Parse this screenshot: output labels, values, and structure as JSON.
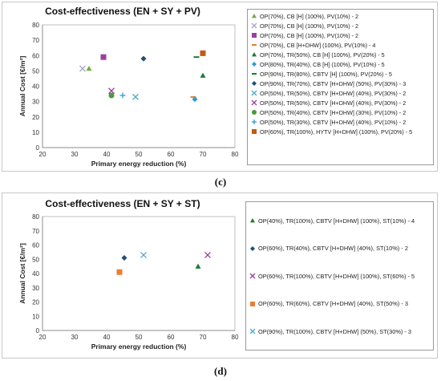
{
  "captions": [
    "(c)",
    "(d)"
  ],
  "chart_data": [
    {
      "type": "scatter",
      "title": "Cost-effectiveness  (EN + SY + PV)",
      "xlabel": "Primary energy reduction (%)",
      "ylabel": "Annual Cost [€/m²]",
      "xlim": [
        20,
        80
      ],
      "ylim": [
        0,
        80
      ],
      "xticks": [
        20,
        30,
        40,
        50,
        60,
        70,
        80
      ],
      "yticks": [
        0,
        10,
        20,
        30,
        40,
        50,
        60,
        70,
        80
      ],
      "grid": false,
      "legend_position": "right",
      "series": [
        {
          "name": "OP(70%), CB [H] (100%), PV(10%) - 2",
          "marker": "triangle",
          "color": "#70ad47",
          "x": [
            34.5
          ],
          "y": [
            51.5
          ]
        },
        {
          "name": "OP(70%), CB [H] (100%), PV(10%) - 2",
          "marker": "x",
          "color": "#a6a6c8",
          "x": [
            32.5
          ],
          "y": [
            51.5
          ]
        },
        {
          "name": "OP(70%), CB [H] (100%), PV(10%) - 2",
          "marker": "square",
          "color": "#9b3fa0",
          "x": [
            39
          ],
          "y": [
            59
          ]
        },
        {
          "name": "OP(70%), CB [H+DHW] (100%), PV(10%) - 4",
          "marker": "dash",
          "color": "#ed7d31",
          "x": [
            67
          ],
          "y": [
            33
          ]
        },
        {
          "name": "OP(70%), TR(50%), CB [H] (100%), PV(20%) - 5",
          "marker": "triangle",
          "color": "#1e7b34",
          "x": [
            70
          ],
          "y": [
            47
          ]
        },
        {
          "name": "OP(80%), TR(40%), CB [H] (100%), PV(10%) - 5",
          "marker": "diamond",
          "color": "#2e9bd6",
          "x": [
            67.5
          ],
          "y": [
            31.5
          ]
        },
        {
          "name": "OP(90%), TR(80%), CBTV [H] (100%), PV(20%) - 5",
          "marker": "dash",
          "color": "#1e7b34",
          "x": [
            68
          ],
          "y": [
            59
          ]
        },
        {
          "name": "OP(90%), TR(70%), CBTV [H+DHW] (50%), PV(30%) - 3",
          "marker": "diamond",
          "color": "#1f4e79",
          "x": [
            51.5
          ],
          "y": [
            58
          ]
        },
        {
          "name": "OP(50%), TR(50%), CBTV [H+DHW] (40%), PV(30%) - 2",
          "marker": "x",
          "color": "#4bacc6",
          "x": [
            49
          ],
          "y": [
            33
          ]
        },
        {
          "name": "OP(50%), TR(50%), CBTV [H+DHW] (40%), PV(30%) - 2",
          "marker": "x",
          "color": "#9b3fa0",
          "x": [
            41.5
          ],
          "y": [
            37
          ]
        },
        {
          "name": "OP(50%), TR(40%), CBTV [H+DHW] (30%), PV(10%) - 2",
          "marker": "circle",
          "color": "#4a9a3a",
          "x": [
            41.5
          ],
          "y": [
            34
          ]
        },
        {
          "name": "OP(50%), TR(30%), CBTV [H+DHW] (40%), PV(10%) - 2",
          "marker": "plus",
          "color": "#2e9bd6",
          "x": [
            45
          ],
          "y": [
            34
          ]
        },
        {
          "name": "OP(60%), TR(100%), HYTV [H+DHW] (100%), PV(20%) - 5",
          "marker": "square",
          "color": "#c55a11",
          "x": [
            70
          ],
          "y": [
            61.5
          ]
        }
      ]
    },
    {
      "type": "scatter",
      "title": "Cost-effectiveness  (EN + SY + ST)",
      "xlabel": "Primary energy reduction (%)",
      "ylabel": "Annual Cost [€/m²]",
      "xlim": [
        20,
        80
      ],
      "ylim": [
        0,
        80
      ],
      "xticks": [
        20,
        30,
        40,
        50,
        60,
        70,
        80
      ],
      "yticks": [
        0,
        10,
        20,
        30,
        40,
        50,
        60,
        70,
        80
      ],
      "grid": false,
      "legend_position": "right",
      "series": [
        {
          "name": "OP(40%), TR(100%), CBTV [H+DHW] (100%), ST(10%) - 4",
          "marker": "triangle",
          "color": "#1e7b34",
          "x": [
            68.5
          ],
          "y": [
            45
          ]
        },
        {
          "name": "OP(60%), TR(40%), CBTV [H+DHW] (40%), ST(10%) - 2",
          "marker": "diamond",
          "color": "#1f4e79",
          "x": [
            45.5
          ],
          "y": [
            51
          ]
        },
        {
          "name": "OP(60%), TR(100%), CBTV [H+DHW] (100%), ST(60%) - 5",
          "marker": "x",
          "color": "#9b3fa0",
          "x": [
            71.5
          ],
          "y": [
            53
          ]
        },
        {
          "name": "OP(60%), TR(60%), CBTV [H+DHW] (40%), ST(50%) - 3",
          "marker": "square",
          "color": "#ed7d31",
          "x": [
            44
          ],
          "y": [
            41
          ]
        },
        {
          "name": "OP(90%), TR(100%), CBTV [H+DHW] (50%), ST(30%) - 3",
          "marker": "x",
          "color": "#4bacc6",
          "x": [
            51.5
          ],
          "y": [
            53
          ]
        }
      ]
    }
  ]
}
